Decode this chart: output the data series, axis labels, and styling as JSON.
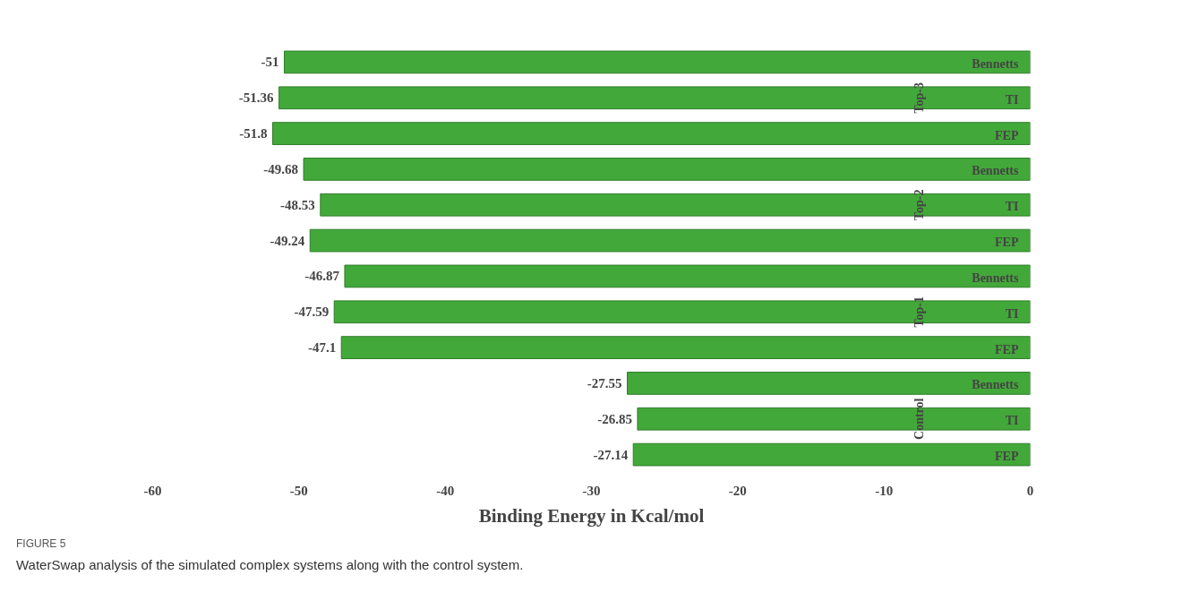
{
  "chart_data": {
    "type": "bar",
    "orientation": "horizontal",
    "categories": [
      "Bennetts",
      "TI",
      "FEP",
      "Bennetts",
      "TI",
      "FEP",
      "Bennetts",
      "TI",
      "FEP",
      "Bennetts",
      "TI",
      "FEP"
    ],
    "values": [
      -51,
      -51.36,
      -51.8,
      -49.68,
      -48.53,
      -49.24,
      -46.87,
      -47.59,
      -47.1,
      -27.55,
      -26.85,
      -27.14
    ],
    "color": "#43a83a",
    "data_labels": true,
    "xlim": [
      -60,
      0
    ],
    "xticks": [
      -60,
      -50,
      -40,
      -30,
      -20,
      -10,
      0
    ],
    "xlabel": "Binding Energy in Kcal/mol",
    "grid": false,
    "annotations": [
      "Top-3",
      "Top-2",
      "Top-1",
      "Control",
      "FIGURE 5",
      "WaterSwap analysis of the simulated complex systems along with the control system."
    ]
  }
}
